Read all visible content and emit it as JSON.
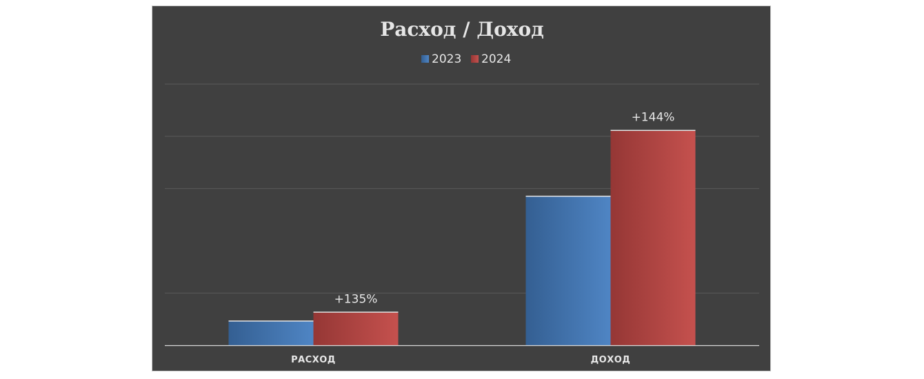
{
  "chart_data": {
    "type": "bar",
    "title": "Расход / Доход",
    "categories": [
      "РАСХОД",
      "ДОХОД"
    ],
    "series": [
      {
        "name": "2023",
        "values": [
          0.47,
          2.86
        ],
        "color": "#4a7ebb",
        "color_dark": "#345f92"
      },
      {
        "name": "2024",
        "values": [
          0.64,
          4.12
        ],
        "color": "#c0504d",
        "color_dark": "#953735"
      }
    ],
    "data_labels": [
      {
        "category": "РАСХОД",
        "series": "2024",
        "text": "+135%"
      },
      {
        "category": "ДОХОД",
        "series": "2024",
        "text": "+144%"
      }
    ],
    "ylim": [
      0,
      5
    ],
    "gridlines": [
      1,
      3,
      4,
      5
    ],
    "grid": true,
    "legend_position": "top",
    "colors": {
      "background": "#404040",
      "grid": "#5a5a5a",
      "axis": "#d9d9d9",
      "text": "#e8e8e8"
    }
  }
}
